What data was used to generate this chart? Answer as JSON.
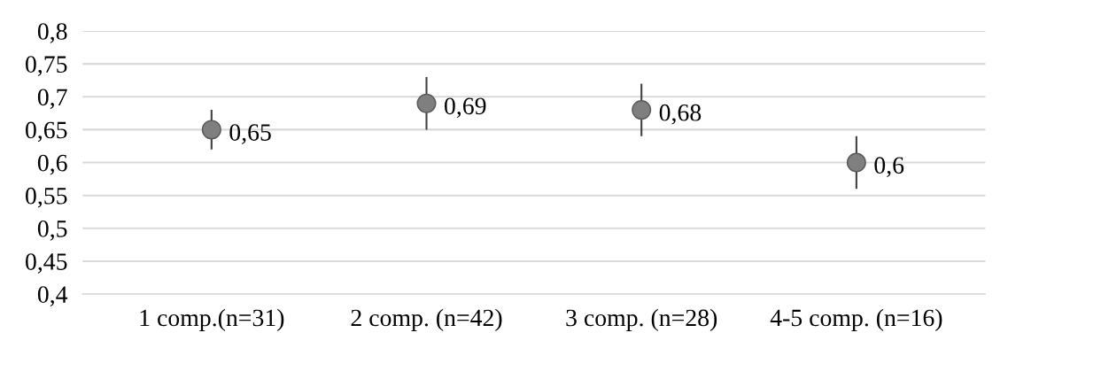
{
  "chart_data": {
    "type": "scatter",
    "categories": [
      "1 comp.(n=31)",
      "2 comp. (n=42)",
      "3 comp. (n=28)",
      "4-5 comp. (n=16)"
    ],
    "series": [
      {
        "color": "#7f7f7f",
        "values": [
          0.65,
          0.69,
          0.68,
          0.6
        ],
        "errors": [
          0.03,
          0.04,
          0.04,
          0.04
        ],
        "value_labels": [
          "0,65",
          "0,69",
          "0,68",
          "0,6"
        ]
      }
    ],
    "ylim": [
      0.4,
      0.8
    ],
    "yticks": [
      {
        "value": 0.4,
        "label": "0,4"
      },
      {
        "value": 0.45,
        "label": "0,45"
      },
      {
        "value": 0.5,
        "label": "0,5"
      },
      {
        "value": 0.55,
        "label": "0,55"
      },
      {
        "value": 0.6,
        "label": "0,6"
      },
      {
        "value": 0.65,
        "label": "0,65"
      },
      {
        "value": 0.7,
        "label": "0,7"
      },
      {
        "value": 0.75,
        "label": "0,75"
      },
      {
        "value": 0.8,
        "label": "0,8"
      }
    ],
    "grid": "y",
    "marker": "circle",
    "legend": false
  }
}
